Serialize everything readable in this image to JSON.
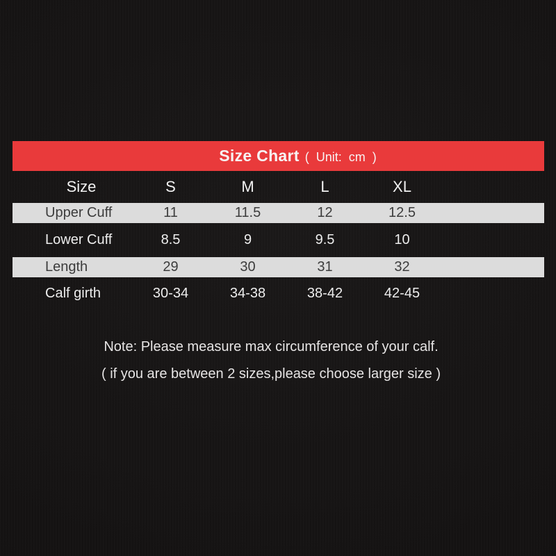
{
  "header": {
    "title_main": "Size Chart",
    "title_unit": "( Unit: cm )",
    "bar_color": "#e93a3b"
  },
  "table": {
    "columns": [
      "Size",
      "S",
      "M",
      "L",
      "XL"
    ],
    "rows": [
      {
        "label": "Upper Cuff",
        "values": [
          "11",
          "11.5",
          "12",
          "12.5"
        ],
        "highlight": true
      },
      {
        "label": "Lower Cuff",
        "values": [
          "8.5",
          "9",
          "9.5",
          "10"
        ],
        "highlight": false
      },
      {
        "label": "Length",
        "values": [
          "29",
          "30",
          "31",
          "32"
        ],
        "highlight": true
      },
      {
        "label": "Calf girth",
        "values": [
          "30-34",
          "34-38",
          "38-42",
          "42-45"
        ],
        "highlight": false
      }
    ]
  },
  "note": {
    "line1": "Note: Please measure max circumference of your calf.",
    "line2": "( if you are between 2 sizes,please choose larger size )"
  },
  "colors": {
    "background": "#151313",
    "header_bar": "#e93a3b",
    "highlight_row": "#dcdcdc",
    "dark_row_text": "#ededed",
    "light_row_text": "#3c3c3c"
  },
  "chart_data": {
    "type": "table",
    "title": "Size Chart ( Unit: cm )",
    "columns": [
      "Size",
      "S",
      "M",
      "L",
      "XL"
    ],
    "rows": [
      [
        "Upper Cuff",
        "11",
        "11.5",
        "12",
        "12.5"
      ],
      [
        "Lower Cuff",
        "8.5",
        "9",
        "9.5",
        "10"
      ],
      [
        "Length",
        "29",
        "30",
        "31",
        "32"
      ],
      [
        "Calf girth",
        "30-34",
        "34-38",
        "38-42",
        "42-45"
      ]
    ],
    "notes": [
      "Note: Please measure max circumference of your calf.",
      "( if you are between 2 sizes,please choose larger size )"
    ]
  }
}
